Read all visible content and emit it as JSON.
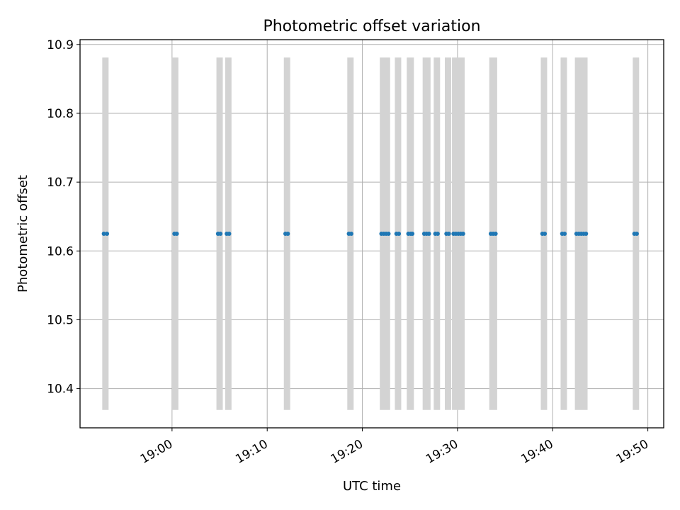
{
  "chart_data": {
    "type": "scatter",
    "title": "Photometric offset variation",
    "xlabel": "UTC time",
    "ylabel": "Photometric offset",
    "xlim": [
      "18:50:20",
      "19:51:40"
    ],
    "ylim": [
      10.343,
      10.907
    ],
    "grid": true,
    "x_ticks": [
      "19:00",
      "19:10",
      "19:20",
      "19:30",
      "19:40",
      "19:50"
    ],
    "y_ticks": [
      "10.4",
      "10.5",
      "10.6",
      "10.7",
      "10.8",
      "10.9"
    ],
    "series": [
      {
        "marker_color": "#1f77b4",
        "points": [
          {
            "x": "18:52:50",
            "y": 10.625
          },
          {
            "x": "18:53:10",
            "y": 10.625
          },
          {
            "x": "19:00:15",
            "y": 10.625
          },
          {
            "x": "19:00:30",
            "y": 10.625
          },
          {
            "x": "19:04:50",
            "y": 10.625
          },
          {
            "x": "19:05:05",
            "y": 10.625
          },
          {
            "x": "19:05:45",
            "y": 10.625
          },
          {
            "x": "19:06:00",
            "y": 10.625
          },
          {
            "x": "19:11:55",
            "y": 10.625
          },
          {
            "x": "19:12:10",
            "y": 10.625
          },
          {
            "x": "19:18:35",
            "y": 10.625
          },
          {
            "x": "19:18:50",
            "y": 10.625
          },
          {
            "x": "19:22:00",
            "y": 10.625
          },
          {
            "x": "19:22:15",
            "y": 10.625
          },
          {
            "x": "19:22:30",
            "y": 10.625
          },
          {
            "x": "19:22:45",
            "y": 10.625
          },
          {
            "x": "19:23:35",
            "y": 10.625
          },
          {
            "x": "19:23:50",
            "y": 10.625
          },
          {
            "x": "19:24:50",
            "y": 10.625
          },
          {
            "x": "19:25:05",
            "y": 10.625
          },
          {
            "x": "19:25:15",
            "y": 10.625
          },
          {
            "x": "19:26:30",
            "y": 10.625
          },
          {
            "x": "19:26:45",
            "y": 10.625
          },
          {
            "x": "19:27:00",
            "y": 10.625
          },
          {
            "x": "19:27:40",
            "y": 10.625
          },
          {
            "x": "19:27:55",
            "y": 10.625
          },
          {
            "x": "19:28:50",
            "y": 10.625
          },
          {
            "x": "19:29:05",
            "y": 10.625
          },
          {
            "x": "19:29:35",
            "y": 10.625
          },
          {
            "x": "19:29:50",
            "y": 10.625
          },
          {
            "x": "19:30:05",
            "y": 10.625
          },
          {
            "x": "19:30:20",
            "y": 10.625
          },
          {
            "x": "19:30:35",
            "y": 10.625
          },
          {
            "x": "19:33:30",
            "y": 10.625
          },
          {
            "x": "19:33:45",
            "y": 10.625
          },
          {
            "x": "19:34:00",
            "y": 10.625
          },
          {
            "x": "19:38:55",
            "y": 10.625
          },
          {
            "x": "19:39:10",
            "y": 10.625
          },
          {
            "x": "19:41:00",
            "y": 10.625
          },
          {
            "x": "19:41:15",
            "y": 10.625
          },
          {
            "x": "19:42:30",
            "y": 10.625
          },
          {
            "x": "19:42:45",
            "y": 10.625
          },
          {
            "x": "19:43:00",
            "y": 10.625
          },
          {
            "x": "19:43:15",
            "y": 10.625
          },
          {
            "x": "19:43:30",
            "y": 10.625
          },
          {
            "x": "19:48:35",
            "y": 10.625
          },
          {
            "x": "19:48:50",
            "y": 10.625
          }
        ]
      }
    ],
    "error_bars": {
      "color": "#d3d3d3",
      "y_low": 10.369,
      "y_high": 10.881,
      "spans": [
        [
          "18:52:40",
          "18:53:20"
        ],
        [
          "19:00:00",
          "19:00:40"
        ],
        [
          "19:04:40",
          "19:05:20"
        ],
        [
          "19:05:35",
          "19:06:15"
        ],
        [
          "19:11:45",
          "19:12:25"
        ],
        [
          "19:18:25",
          "19:19:05"
        ],
        [
          "19:21:50",
          "19:22:55"
        ],
        [
          "19:23:25",
          "19:24:05"
        ],
        [
          "19:24:40",
          "19:25:25"
        ],
        [
          "19:26:20",
          "19:27:10"
        ],
        [
          "19:27:30",
          "19:28:10"
        ],
        [
          "19:28:40",
          "19:29:20"
        ],
        [
          "19:29:25",
          "19:30:45"
        ],
        [
          "19:33:20",
          "19:34:10"
        ],
        [
          "19:38:45",
          "19:39:25"
        ],
        [
          "19:40:50",
          "19:41:30"
        ],
        [
          "19:42:20",
          "19:43:40"
        ],
        [
          "19:48:25",
          "19:49:05"
        ]
      ]
    }
  }
}
